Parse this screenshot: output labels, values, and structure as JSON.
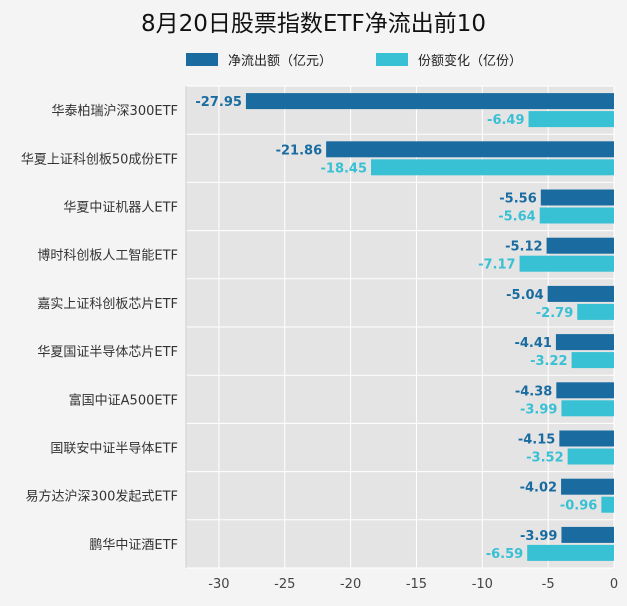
{
  "chart_data": {
    "type": "bar",
    "orientation": "horizontal",
    "title": "8月20日股票指数ETF净流出前10",
    "categories": [
      "华泰柏瑞沪深300ETF",
      "华夏上证科创板50成份ETF",
      "华夏中证机器人ETF",
      "博时科创板人工智能ETF",
      "嘉实上证科创板芯片ETF",
      "华夏国证半导体芯片ETF",
      "富国中证A500ETF",
      "国联安中证半导体ETF",
      "易方达沪深300发起式ETF",
      "鹏华中证酒ETF"
    ],
    "series": [
      {
        "name": "净流出额（亿元）",
        "color": "#1a6ca0",
        "values": [
          -27.95,
          -21.86,
          -5.56,
          -5.12,
          -5.04,
          -4.41,
          -4.38,
          -4.15,
          -4.02,
          -3.99
        ]
      },
      {
        "name": "份额变化（亿份）",
        "color": "#38c0d4",
        "values": [
          -6.49,
          -18.45,
          -5.64,
          -7.17,
          -2.79,
          -3.22,
          -3.99,
          -3.52,
          -0.96,
          -6.59
        ]
      }
    ],
    "xlim": [
      -32.5,
      0
    ],
    "xticks": [
      -30,
      -25,
      -20,
      -15,
      -10,
      -5,
      0
    ],
    "grid": true,
    "legend_position": "top"
  }
}
